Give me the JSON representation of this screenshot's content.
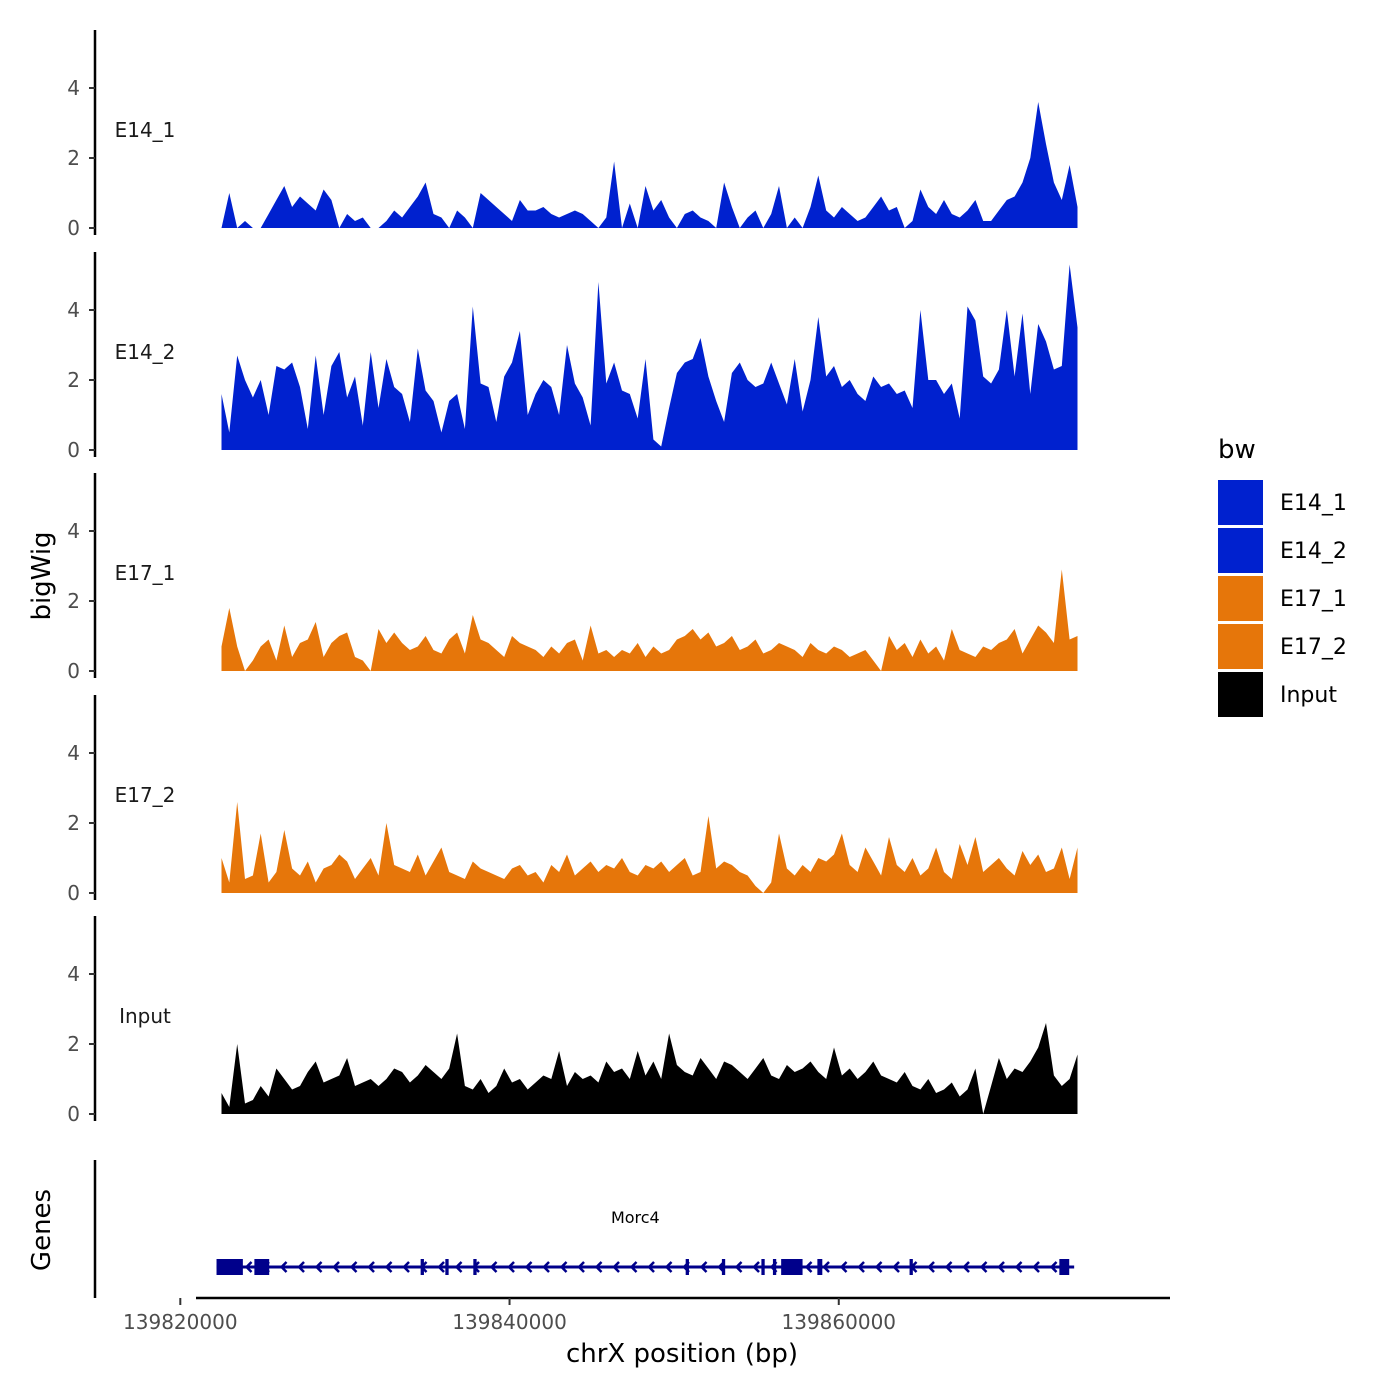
{
  "chart_data": {
    "type": "area",
    "ylabel": "bigWig",
    "xlabel": "chrX position (bp)",
    "xlim": [
      139815000,
      139880000
    ],
    "ylim": [
      0,
      5.5
    ],
    "y_ticks": [
      0,
      2,
      4
    ],
    "x_ticks": [
      139820000,
      139840000,
      139860000
    ],
    "x_tick_labels": [
      "139820000",
      "139840000",
      "139860000"
    ],
    "data_range": [
      139822500,
      139874500
    ],
    "legend": {
      "title": "bw",
      "entries": [
        {
          "label": "E14_1",
          "color": "#0021cf"
        },
        {
          "label": "E14_2",
          "color": "#0021cf"
        },
        {
          "label": "E17_1",
          "color": "#e6760a"
        },
        {
          "label": "E17_2",
          "color": "#e6760a"
        },
        {
          "label": "Input",
          "color": "#000000"
        }
      ]
    },
    "series": [
      {
        "name": "E14_1",
        "color": "#0021cf",
        "values": [
          0,
          1.0,
          0,
          0.2,
          0,
          0,
          0.4,
          0.8,
          1.2,
          0.6,
          0.9,
          0.7,
          0.5,
          1.1,
          0.8,
          0,
          0.4,
          0.2,
          0.3,
          0,
          0,
          0.2,
          0.5,
          0.3,
          0.6,
          0.9,
          1.3,
          0.4,
          0.3,
          0,
          0.5,
          0.3,
          0,
          1.0,
          0.8,
          0.6,
          0.4,
          0.2,
          0.8,
          0.5,
          0.5,
          0.6,
          0.4,
          0.3,
          0.4,
          0.5,
          0.4,
          0.2,
          0,
          0.3,
          1.9,
          0,
          0.7,
          0,
          1.2,
          0.5,
          0.8,
          0.3,
          0,
          0.4,
          0.5,
          0.3,
          0.2,
          0,
          1.3,
          0.6,
          0,
          0.3,
          0.5,
          0,
          0.4,
          1.2,
          0,
          0.3,
          0,
          0.6,
          1.5,
          0.5,
          0.3,
          0.6,
          0.4,
          0.2,
          0.3,
          0.6,
          0.9,
          0.5,
          0.6,
          0,
          0.2,
          1.1,
          0.6,
          0.4,
          0.8,
          0.4,
          0.3,
          0.5,
          0.8,
          0.2,
          0.2,
          0.5,
          0.8,
          0.9,
          1.3,
          2.0,
          3.6,
          2.4,
          1.3,
          0.8,
          1.8,
          0.6
        ]
      },
      {
        "name": "E14_2",
        "color": "#0021cf",
        "values": [
          1.6,
          0.5,
          2.7,
          2.0,
          1.5,
          2.0,
          1.0,
          2.4,
          2.3,
          2.5,
          1.8,
          0.6,
          2.7,
          1.0,
          2.4,
          2.8,
          1.5,
          2.1,
          0.7,
          2.8,
          1.2,
          2.6,
          1.8,
          1.6,
          0.8,
          2.9,
          1.7,
          1.4,
          0.5,
          1.4,
          1.6,
          0.6,
          4.1,
          1.9,
          1.8,
          0.8,
          2.1,
          2.5,
          3.4,
          1.0,
          1.6,
          2.0,
          1.8,
          1.0,
          3.0,
          1.9,
          1.5,
          0.7,
          4.8,
          1.9,
          2.5,
          1.7,
          1.6,
          0.9,
          2.6,
          0.3,
          0.1,
          1.2,
          2.2,
          2.5,
          2.6,
          3.2,
          2.1,
          1.4,
          0.8,
          2.2,
          2.5,
          2.0,
          1.8,
          1.9,
          2.5,
          1.9,
          1.3,
          2.6,
          1.1,
          2.0,
          3.8,
          2.1,
          2.4,
          1.8,
          2.0,
          1.6,
          1.4,
          2.1,
          1.8,
          1.9,
          1.6,
          1.7,
          1.2,
          4.0,
          2.0,
          2.0,
          1.6,
          1.9,
          0.9,
          4.1,
          3.7,
          2.1,
          1.9,
          2.3,
          4.0,
          2.1,
          3.9,
          1.6,
          3.6,
          3.1,
          2.3,
          2.4,
          5.3,
          3.5
        ]
      },
      {
        "name": "E17_1",
        "color": "#e6760a",
        "values": [
          0.7,
          1.8,
          0.7,
          0,
          0.3,
          0.7,
          0.9,
          0.3,
          1.3,
          0.4,
          0.8,
          0.9,
          1.4,
          0.4,
          0.8,
          1.0,
          1.1,
          0.4,
          0.3,
          0,
          1.2,
          0.8,
          1.1,
          0.8,
          0.6,
          0.7,
          1.0,
          0.6,
          0.5,
          0.9,
          1.1,
          0.5,
          1.6,
          0.9,
          0.8,
          0.6,
          0.4,
          1.0,
          0.8,
          0.7,
          0.6,
          0.4,
          0.7,
          0.5,
          0.8,
          0.9,
          0.3,
          1.3,
          0.5,
          0.6,
          0.4,
          0.6,
          0.5,
          0.8,
          0.4,
          0.7,
          0.5,
          0.6,
          0.9,
          1.0,
          1.2,
          0.9,
          1.1,
          0.7,
          0.8,
          1.0,
          0.6,
          0.7,
          0.9,
          0.5,
          0.6,
          0.8,
          0.7,
          0.6,
          0.4,
          0.8,
          0.6,
          0.5,
          0.7,
          0.6,
          0.4,
          0.5,
          0.6,
          0.3,
          0,
          1.0,
          0.6,
          0.8,
          0.4,
          0.9,
          0.5,
          0.7,
          0.3,
          1.2,
          0.6,
          0.5,
          0.4,
          0.7,
          0.6,
          0.8,
          0.9,
          1.2,
          0.5,
          0.9,
          1.3,
          1.1,
          0.8,
          2.9,
          0.9,
          1.0
        ]
      },
      {
        "name": "E17_2",
        "color": "#e6760a",
        "values": [
          1.0,
          0.3,
          2.6,
          0.4,
          0.5,
          1.7,
          0.3,
          0.6,
          1.8,
          0.7,
          0.5,
          0.9,
          0.3,
          0.7,
          0.8,
          1.1,
          0.9,
          0.4,
          0.7,
          1.0,
          0.5,
          2.0,
          0.8,
          0.7,
          0.6,
          1.1,
          0.5,
          0.9,
          1.3,
          0.6,
          0.5,
          0.4,
          0.9,
          0.7,
          0.6,
          0.5,
          0.4,
          0.7,
          0.8,
          0.5,
          0.6,
          0.3,
          0.8,
          0.6,
          1.1,
          0.5,
          0.7,
          0.9,
          0.6,
          0.8,
          0.7,
          1.0,
          0.6,
          0.5,
          0.8,
          0.7,
          0.9,
          0.6,
          0.8,
          1.0,
          0.5,
          0.6,
          2.2,
          0.7,
          0.9,
          0.8,
          0.6,
          0.5,
          0.2,
          0,
          0.3,
          1.7,
          0.7,
          0.5,
          0.8,
          0.6,
          1.0,
          0.9,
          1.1,
          1.7,
          0.8,
          0.6,
          1.3,
          0.9,
          0.5,
          1.6,
          0.8,
          0.6,
          1.0,
          0.5,
          0.7,
          1.3,
          0.6,
          0.4,
          1.4,
          0.8,
          1.6,
          0.6,
          0.8,
          1.0,
          0.7,
          0.5,
          1.2,
          0.8,
          1.1,
          0.6,
          0.7,
          1.3,
          0.4,
          1.3
        ]
      },
      {
        "name": "Input",
        "color": "#000000",
        "values": [
          0.6,
          0.2,
          2.0,
          0.3,
          0.4,
          0.8,
          0.5,
          1.3,
          1.0,
          0.7,
          0.8,
          1.2,
          1.5,
          0.9,
          1.0,
          1.1,
          1.6,
          0.8,
          0.9,
          1.0,
          0.8,
          1.0,
          1.3,
          1.2,
          0.9,
          1.1,
          1.4,
          1.2,
          1.0,
          1.3,
          2.3,
          0.8,
          0.7,
          1.0,
          0.6,
          0.8,
          1.3,
          0.9,
          1.0,
          0.7,
          0.9,
          1.1,
          1.0,
          1.8,
          0.8,
          1.2,
          1.0,
          1.1,
          0.9,
          1.5,
          1.2,
          1.3,
          1.0,
          1.8,
          1.1,
          1.5,
          1.0,
          2.3,
          1.4,
          1.2,
          1.1,
          1.6,
          1.3,
          1.0,
          1.5,
          1.4,
          1.2,
          1.0,
          1.3,
          1.6,
          1.1,
          1.0,
          1.4,
          1.2,
          1.3,
          1.5,
          1.2,
          1.0,
          1.9,
          1.1,
          1.3,
          1.0,
          1.2,
          1.5,
          1.1,
          1.0,
          0.9,
          1.2,
          0.8,
          0.7,
          1.0,
          0.6,
          0.7,
          0.9,
          0.5,
          0.7,
          1.3,
          0,
          0.8,
          1.6,
          1.0,
          1.3,
          1.2,
          1.5,
          1.9,
          2.6,
          1.1,
          0.8,
          1.0,
          1.7
        ]
      }
    ],
    "genes_track": {
      "label": "Genes",
      "gene_name": "Morc4",
      "strand": "-",
      "start": 139822200,
      "end": 139874300,
      "exons": [
        [
          139822200,
          139823800
        ],
        [
          139824500,
          139825400
        ],
        [
          139834600,
          139834800
        ],
        [
          139836100,
          139836300
        ],
        [
          139837800,
          139838000
        ],
        [
          139850700,
          139850900
        ],
        [
          139852900,
          139853100
        ],
        [
          139855300,
          139855500
        ],
        [
          139856000,
          139856200
        ],
        [
          139856500,
          139857800
        ],
        [
          139858700,
          139859000
        ],
        [
          139864300,
          139864500
        ],
        [
          139873400,
          139874000
        ]
      ]
    }
  }
}
